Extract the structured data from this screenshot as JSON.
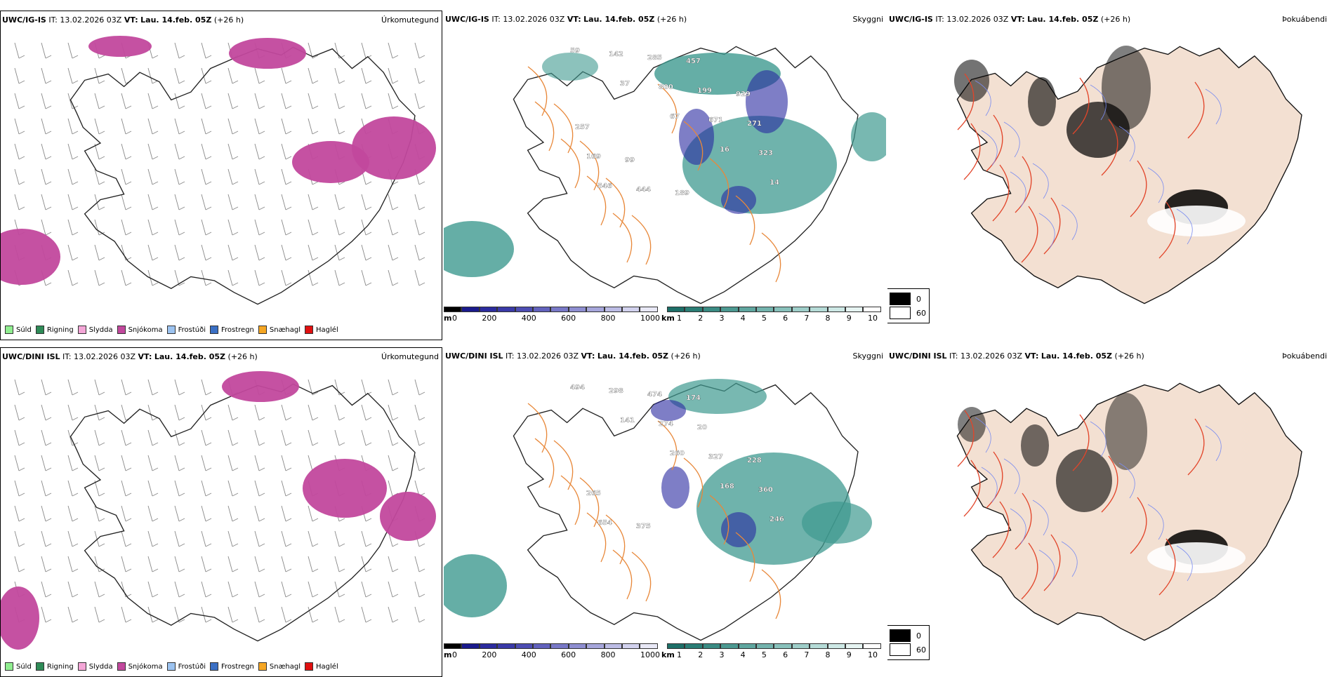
{
  "rows": [
    {
      "model": "UWC/IG-IS",
      "it_label": "IT:",
      "it_value": "13.02.2026 03Z",
      "vt_label": "VT:",
      "vt_value": "Lau. 14.feb. 05Z",
      "lead": "(+26 h)",
      "elevation_labels": [
        "59",
        "37",
        "67",
        "16",
        "14",
        "142",
        "800",
        "671",
        "323",
        "546",
        "285",
        "199",
        "271",
        "169",
        "444",
        "457",
        "929",
        "257",
        "99",
        "189"
      ]
    },
    {
      "model": "UWC/DINI ISL",
      "it_label": "IT:",
      "it_value": "13.02.2026 03Z",
      "vt_label": "VT:",
      "vt_value": "Lau. 14.feb. 05Z",
      "lead": "(+26 h)",
      "elevation_labels": [
        "494",
        "141",
        "260",
        "168",
        "246",
        "298",
        "274",
        "327",
        "360",
        "654",
        "474",
        "20",
        "228",
        "265",
        "375",
        "174"
      ]
    }
  ],
  "panel_titles": {
    "precip": "Úrkomutegund",
    "ceiling": "Skyggni",
    "fog": "Þokuábendi"
  },
  "precip_legend": [
    {
      "label": "Súld",
      "color": "#90ee90"
    },
    {
      "label": "Rigning",
      "color": "#2e8b57"
    },
    {
      "label": "Slydda",
      "color": "#f4a6d7"
    },
    {
      "label": "Snjókoma",
      "color": "#c2489d"
    },
    {
      "label": "Frostúði",
      "color": "#9cc3f0"
    },
    {
      "label": "Frostregn",
      "color": "#3a6fc4"
    },
    {
      "label": "Snæhagl",
      "color": "#f5a623"
    },
    {
      "label": "Haglél",
      "color": "#e01010"
    }
  ],
  "ceiling_bar": {
    "unit": "m",
    "ticks": [
      "0",
      "200",
      "400",
      "600",
      "800",
      "1000"
    ],
    "colors": [
      "#000000",
      "#1a1a8c",
      "#2b2b9e",
      "#3a3aa8",
      "#4d4db3",
      "#6262bd",
      "#7878c7",
      "#8e8ed1",
      "#a6a6db",
      "#bcbce5",
      "#d2d2ee",
      "#e8e8f6"
    ]
  },
  "visibility_bar": {
    "unit": "km",
    "ticks": [
      "1",
      "2",
      "3",
      "4",
      "5",
      "6",
      "7",
      "8",
      "9",
      "10"
    ],
    "colors": [
      "#1d6f68",
      "#2a7d75",
      "#3a8b83",
      "#4c9991",
      "#5fa69f",
      "#73b3ad",
      "#88c1bb",
      "#9ecec9",
      "#b5dbd7",
      "#cde8e5",
      "#e6f4f2",
      "#ffffff"
    ]
  },
  "fog_legend": [
    {
      "label": "0",
      "color": "#000000"
    },
    {
      "label": "60",
      "color": "#ffffff"
    }
  ],
  "colors": {
    "snow": "#c2489d",
    "visibility": "#3f9a90",
    "ceiling": "#2828a0",
    "roads": "#e8883a",
    "fog_land": "#f3e0d2",
    "fog_roads": "#e2452a",
    "rivers": "#7a8cf0"
  }
}
